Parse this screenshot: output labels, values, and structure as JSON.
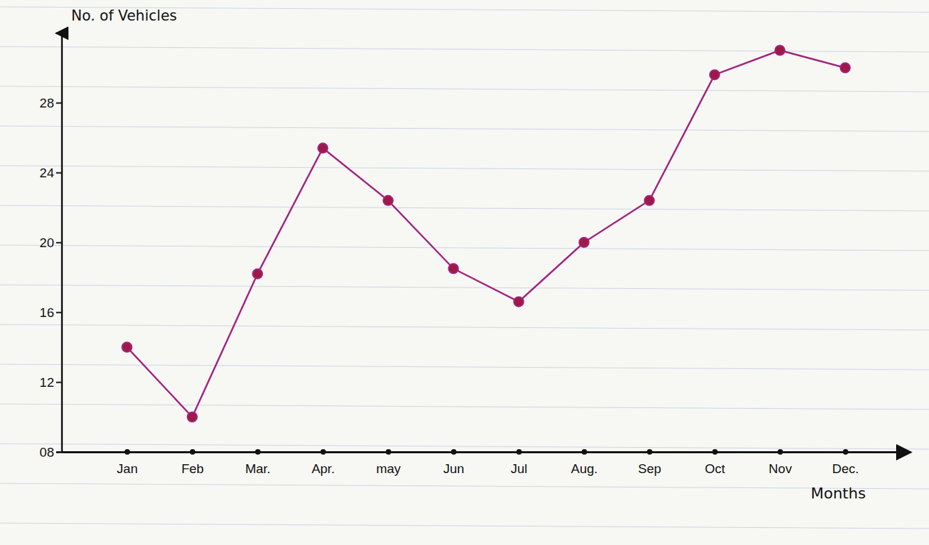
{
  "chart_data": {
    "type": "line",
    "y_label": "No. of Vehicles",
    "x_label": "Months",
    "categories": [
      "Jan",
      "Feb",
      "Mar.",
      "Apr.",
      "may",
      "Jun",
      "Jul",
      "Aug.",
      "Sep",
      "Oct",
      "Nov",
      "Dec."
    ],
    "series": [
      {
        "color": "#a3217e",
        "marker": "circle",
        "values": [
          14,
          10,
          18.2,
          25.4,
          22.4,
          18.5,
          16.6,
          20,
          22.4,
          29.6,
          31,
          30
        ]
      }
    ],
    "ylim": [
      8,
      32
    ],
    "yticks": [
      {
        "value": 8,
        "label": "08"
      },
      12,
      16,
      20,
      24,
      28
    ],
    "grid": false
  }
}
